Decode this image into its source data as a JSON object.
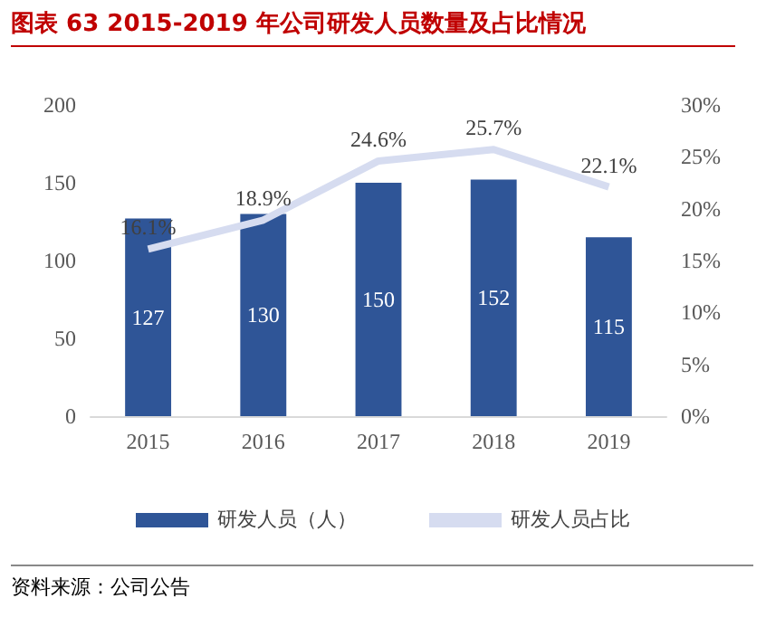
{
  "chart_data": {
    "type": "bar",
    "title": "图表 63 2015-2019 年公司研发人员数量及占比情况",
    "categories": [
      "2015",
      "2016",
      "2017",
      "2018",
      "2019"
    ],
    "series": [
      {
        "name": "研发人员（人）",
        "color": "#2f5597",
        "values": [
          127,
          130,
          150,
          152,
          115
        ],
        "value_labels": [
          "127",
          "130",
          "150",
          "152",
          "115"
        ]
      },
      {
        "name": "研发人员占比",
        "type": "line",
        "axis": "y2",
        "color": "#d6dcf0",
        "values": [
          16.1,
          18.9,
          24.6,
          25.7,
          22.1
        ],
        "value_labels": [
          "16.1%",
          "18.9%",
          "24.6%",
          "25.7%",
          "22.1%"
        ]
      }
    ],
    "ylim": [
      0,
      200
    ],
    "yticks": [
      0,
      50,
      100,
      150,
      200
    ],
    "y2lim": [
      0,
      30
    ],
    "y2ticks": [
      {
        "value": 0,
        "label": "0%"
      },
      {
        "value": 5,
        "label": "5%"
      },
      {
        "value": 10,
        "label": "10%"
      },
      {
        "value": 15,
        "label": "15%"
      },
      {
        "value": 20,
        "label": "20%"
      },
      {
        "value": 25,
        "label": "25%"
      },
      {
        "value": 30,
        "label": "30%"
      }
    ],
    "legend": "bottom",
    "grid": false,
    "marker": "none",
    "annotations": [
      "资料来源：公司公告"
    ]
  }
}
